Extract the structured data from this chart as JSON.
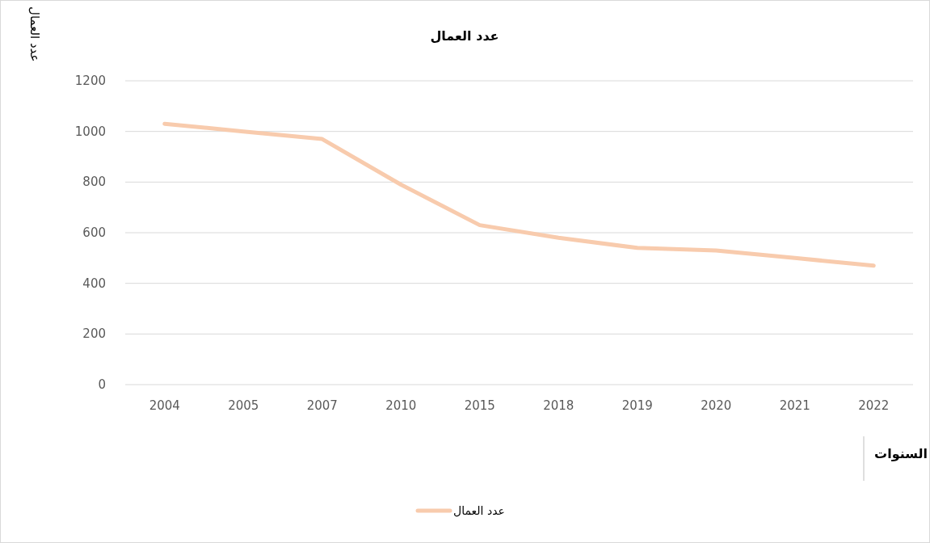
{
  "chart_data": {
    "type": "line",
    "title": "عدد العمال",
    "xlabel": "السنوات",
    "ylabel": "عدد العمال",
    "categories": [
      "2004",
      "2005",
      "2007",
      "2010",
      "2015",
      "2018",
      "2019",
      "2020",
      "2021",
      "2022"
    ],
    "series": [
      {
        "name": "عدد العمال",
        "color": "#f8cbad",
        "values": [
          1030,
          1000,
          970,
          790,
          630,
          580,
          540,
          530,
          500,
          470
        ]
      }
    ],
    "ylim": [
      0,
      1200
    ],
    "yticks": [
      0,
      200,
      400,
      600,
      800,
      1000,
      1200
    ],
    "grid": "y",
    "legend": "bottom"
  }
}
